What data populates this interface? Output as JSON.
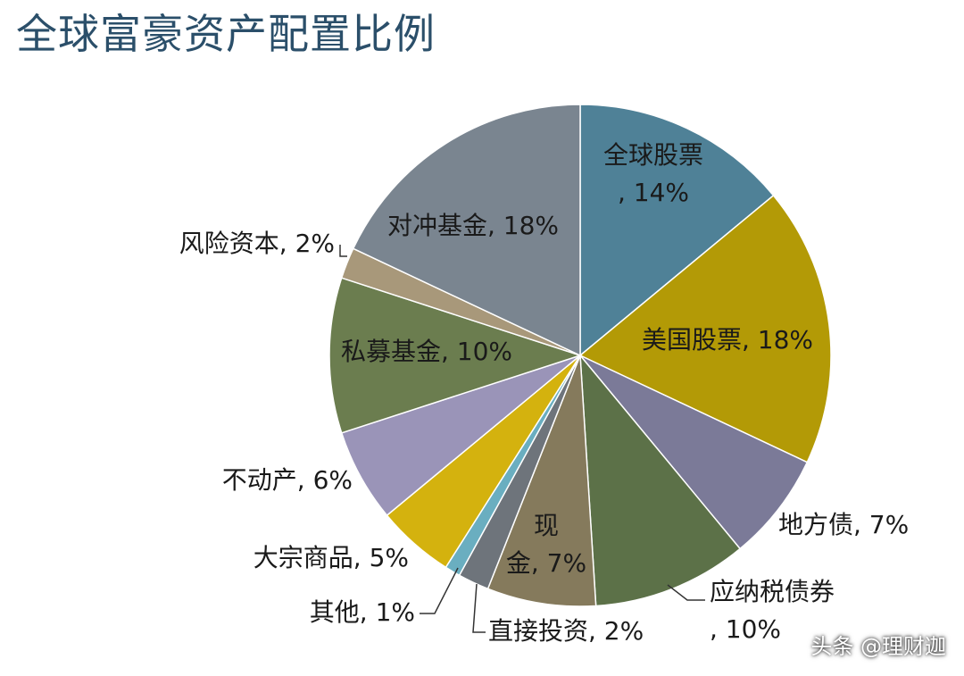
{
  "chart_data": {
    "type": "pie",
    "title": "全球富豪资产配置比例",
    "slices": [
      {
        "label": "全球股票, 14%",
        "value": 14,
        "color": "#4f8197"
      },
      {
        "label": "美国股票, 18%",
        "value": 18,
        "color": "#b39a06"
      },
      {
        "label": "地方债, 7%",
        "value": 7,
        "color": "#7b7a98"
      },
      {
        "label": "应纳税债券, 10%",
        "value": 10,
        "color": "#5c7148"
      },
      {
        "label": "现金, 7%",
        "value": 7,
        "color": "#857a5c"
      },
      {
        "label": "直接投资, 2%",
        "value": 2,
        "color": "#6e747b"
      },
      {
        "label": "其他, 1%",
        "value": 1,
        "color": "#6aaec0"
      },
      {
        "label": "大宗商品, 5%",
        "value": 5,
        "color": "#d4b20e"
      },
      {
        "label": "不动产, 6%",
        "value": 6,
        "color": "#9a94b8"
      },
      {
        "label": "私募基金, 10%",
        "value": 10,
        "color": "#6b7d4f"
      },
      {
        "label": "风险资本, 2%",
        "value": 2,
        "color": "#a8987a"
      },
      {
        "label": "对冲基金, 18%",
        "value": 18,
        "color": "#7a8590"
      }
    ]
  },
  "watermark": "头条 @理财迦"
}
